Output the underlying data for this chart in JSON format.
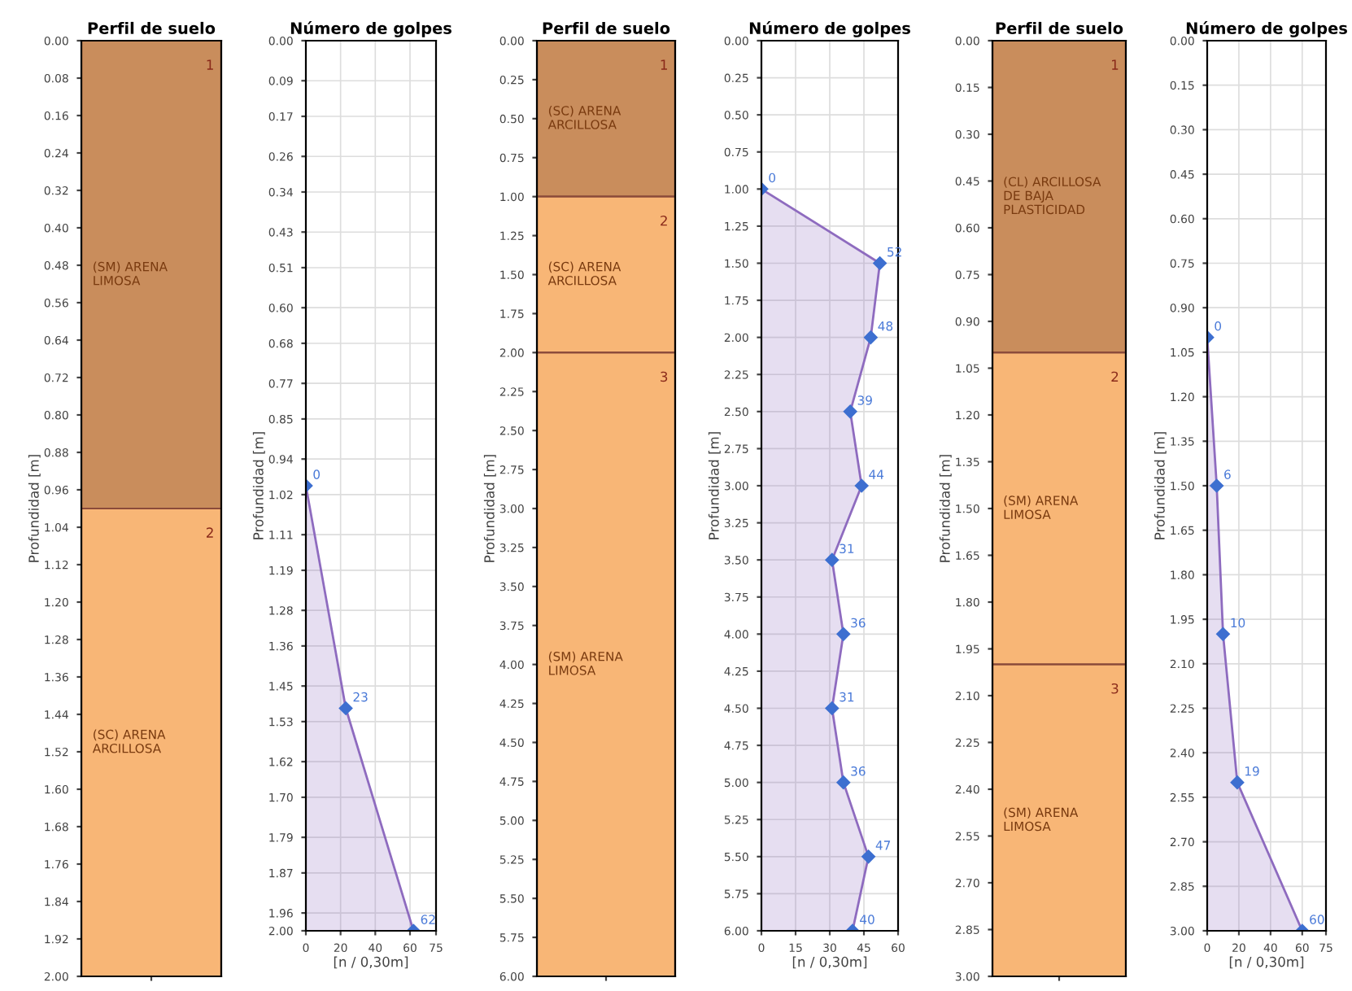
{
  "chart_data": [
    {
      "type": "bar",
      "title": "Perfil de suelo",
      "ylabel": "Profundidad [m]",
      "categories": [
        null
      ],
      "stacked": true,
      "series": [
        {
          "name": "(SM) ARENA LIMOSA",
          "color": "#c98d5c",
          "values": [
            1.0
          ]
        },
        {
          "name": "(SC) ARENA ARCILLOSA",
          "color": "#f8b676",
          "values": [
            1.0
          ]
        }
      ],
      "annotations": [
        "1",
        "2"
      ],
      "ylim": [
        2.0,
        0.0
      ],
      "yticks": [
        {
          "value": 0.0,
          "label": "0.00"
        },
        {
          "value": 0.08,
          "label": "0.08"
        },
        {
          "value": 0.16,
          "label": "0.16"
        },
        {
          "value": 0.24,
          "label": "0.24"
        },
        {
          "value": 0.32,
          "label": "0.32"
        },
        {
          "value": 0.4,
          "label": "0.40"
        },
        {
          "value": 0.48,
          "label": "0.48"
        },
        {
          "value": 0.56,
          "label": "0.56"
        },
        {
          "value": 0.64,
          "label": "0.64"
        },
        {
          "value": 0.72,
          "label": "0.72"
        },
        {
          "value": 0.8,
          "label": "0.80"
        },
        {
          "value": 0.88,
          "label": "0.88"
        },
        {
          "value": 0.96,
          "label": "0.96"
        },
        {
          "value": 1.04,
          "label": "1.04"
        },
        {
          "value": 1.12,
          "label": "1.12"
        },
        {
          "value": 1.2,
          "label": "1.20"
        },
        {
          "value": 1.28,
          "label": "1.28"
        },
        {
          "value": 1.36,
          "label": "1.36"
        },
        {
          "value": 1.44,
          "label": "1.44"
        },
        {
          "value": 1.52,
          "label": "1.52"
        },
        {
          "value": 1.6,
          "label": "1.60"
        },
        {
          "value": 1.68,
          "label": "1.68"
        },
        {
          "value": 1.76,
          "label": "1.76"
        },
        {
          "value": 1.84,
          "label": "1.84"
        },
        {
          "value": 1.92,
          "label": "1.92"
        },
        {
          "value": 2.0,
          "label": "2.00"
        }
      ]
    },
    {
      "type": "area",
      "orientation": "horizontal",
      "title": "Número de golpes",
      "ylabel": "Profundidad [m]",
      "xlabel": "[n / 0,30m]",
      "grid": true,
      "marker": "diamond",
      "data_labels": true,
      "series": [
        {
          "color": "#8e6bbf",
          "x": [
            1.0,
            1.5,
            2.0
          ],
          "values": [
            0,
            23,
            62
          ]
        }
      ],
      "xlim": [
        0,
        75
      ],
      "xticks": [
        0,
        20,
        40,
        60,
        75
      ],
      "ylim": [
        2.0,
        0.0
      ],
      "yticks": [
        {
          "value": 0.0,
          "label": "0.00"
        },
        {
          "value": 0.09,
          "label": "0.09"
        },
        {
          "value": 0.17,
          "label": "0.17"
        },
        {
          "value": 0.26,
          "label": "0.26"
        },
        {
          "value": 0.34,
          "label": "0.34"
        },
        {
          "value": 0.43,
          "label": "0.43"
        },
        {
          "value": 0.51,
          "label": "0.51"
        },
        {
          "value": 0.6,
          "label": "0.60"
        },
        {
          "value": 0.68,
          "label": "0.68"
        },
        {
          "value": 0.77,
          "label": "0.77"
        },
        {
          "value": 0.85,
          "label": "0.85"
        },
        {
          "value": 0.94,
          "label": "0.94"
        },
        {
          "value": 1.02,
          "label": "1.02"
        },
        {
          "value": 1.11,
          "label": "1.11"
        },
        {
          "value": 1.19,
          "label": "1.19"
        },
        {
          "value": 1.28,
          "label": "1.28"
        },
        {
          "value": 1.36,
          "label": "1.36"
        },
        {
          "value": 1.45,
          "label": "1.45"
        },
        {
          "value": 1.53,
          "label": "1.53"
        },
        {
          "value": 1.62,
          "label": "1.62"
        },
        {
          "value": 1.7,
          "label": "1.70"
        },
        {
          "value": 1.79,
          "label": "1.79"
        },
        {
          "value": 1.87,
          "label": "1.87"
        },
        {
          "value": 1.96,
          "label": "1.96"
        },
        {
          "value": 2.0,
          "label": "2.00"
        }
      ]
    },
    {
      "type": "bar",
      "title": "Perfil de suelo",
      "ylabel": "Profundidad [m]",
      "categories": [
        null
      ],
      "stacked": true,
      "series": [
        {
          "name": "(SC) ARENA ARCILLOSA",
          "color": "#c98d5c",
          "values": [
            1.0
          ]
        },
        {
          "name": "(SC) ARENA ARCILLOSA",
          "color": "#f8b676",
          "values": [
            1.0
          ]
        },
        {
          "name": "(SM) ARENA LIMOSA",
          "color": "#f8b676",
          "values": [
            4.0
          ]
        }
      ],
      "annotations": [
        "1",
        "2",
        "3"
      ],
      "ylim": [
        6.0,
        0.0
      ],
      "yticks": [
        {
          "value": 0.0,
          "label": "0.00"
        },
        {
          "value": 0.25,
          "label": "0.25"
        },
        {
          "value": 0.5,
          "label": "0.50"
        },
        {
          "value": 0.75,
          "label": "0.75"
        },
        {
          "value": 1.0,
          "label": "1.00"
        },
        {
          "value": 1.25,
          "label": "1.25"
        },
        {
          "value": 1.5,
          "label": "1.50"
        },
        {
          "value": 1.75,
          "label": "1.75"
        },
        {
          "value": 2.0,
          "label": "2.00"
        },
        {
          "value": 2.25,
          "label": "2.25"
        },
        {
          "value": 2.5,
          "label": "2.50"
        },
        {
          "value": 2.75,
          "label": "2.75"
        },
        {
          "value": 3.0,
          "label": "3.00"
        },
        {
          "value": 3.25,
          "label": "3.25"
        },
        {
          "value": 3.5,
          "label": "3.50"
        },
        {
          "value": 3.75,
          "label": "3.75"
        },
        {
          "value": 4.0,
          "label": "4.00"
        },
        {
          "value": 4.25,
          "label": "4.25"
        },
        {
          "value": 4.5,
          "label": "4.50"
        },
        {
          "value": 4.75,
          "label": "4.75"
        },
        {
          "value": 5.0,
          "label": "5.00"
        },
        {
          "value": 5.25,
          "label": "5.25"
        },
        {
          "value": 5.5,
          "label": "5.50"
        },
        {
          "value": 5.75,
          "label": "5.75"
        },
        {
          "value": 6.0,
          "label": "6.00"
        }
      ]
    },
    {
      "type": "area",
      "orientation": "horizontal",
      "title": "Número de golpes",
      "ylabel": "Profundidad [m]",
      "xlabel": "[n / 0,30m]",
      "grid": true,
      "marker": "diamond",
      "data_labels": true,
      "series": [
        {
          "color": "#8e6bbf",
          "x": [
            1.0,
            1.5,
            2.0,
            2.5,
            3.0,
            3.5,
            4.0,
            4.5,
            5.0,
            5.5,
            6.0
          ],
          "values": [
            0,
            52,
            48,
            39,
            44,
            31,
            36,
            31,
            36,
            47,
            40
          ]
        }
      ],
      "xlim": [
        0,
        60
      ],
      "xticks": [
        0,
        15,
        30,
        45,
        60
      ],
      "ylim": [
        6.0,
        0.0
      ],
      "yticks": [
        {
          "value": 0.0,
          "label": "0.00"
        },
        {
          "value": 0.25,
          "label": "0.25"
        },
        {
          "value": 0.5,
          "label": "0.50"
        },
        {
          "value": 0.75,
          "label": "0.75"
        },
        {
          "value": 1.0,
          "label": "1.00"
        },
        {
          "value": 1.25,
          "label": "1.25"
        },
        {
          "value": 1.5,
          "label": "1.50"
        },
        {
          "value": 1.75,
          "label": "1.75"
        },
        {
          "value": 2.0,
          "label": "2.00"
        },
        {
          "value": 2.25,
          "label": "2.25"
        },
        {
          "value": 2.5,
          "label": "2.50"
        },
        {
          "value": 2.75,
          "label": "2.75"
        },
        {
          "value": 3.0,
          "label": "3.00"
        },
        {
          "value": 3.25,
          "label": "3.25"
        },
        {
          "value": 3.5,
          "label": "3.50"
        },
        {
          "value": 3.75,
          "label": "3.75"
        },
        {
          "value": 4.0,
          "label": "4.00"
        },
        {
          "value": 4.25,
          "label": "4.25"
        },
        {
          "value": 4.5,
          "label": "4.50"
        },
        {
          "value": 4.75,
          "label": "4.75"
        },
        {
          "value": 5.0,
          "label": "5.00"
        },
        {
          "value": 5.25,
          "label": "5.25"
        },
        {
          "value": 5.5,
          "label": "5.50"
        },
        {
          "value": 5.75,
          "label": "5.75"
        },
        {
          "value": 6.0,
          "label": "6.00"
        }
      ]
    },
    {
      "type": "bar",
      "title": "Perfil de suelo",
      "ylabel": "Profundidad [m]",
      "categories": [
        null
      ],
      "stacked": true,
      "series": [
        {
          "name": "(CL) ARCILLOSA DE BAJA PLASTICIDAD",
          "color": "#c98d5c",
          "values": [
            1.0
          ]
        },
        {
          "name": "(SM) ARENA LIMOSA",
          "color": "#f8b676",
          "values": [
            1.0
          ]
        },
        {
          "name": "(SM) ARENA LIMOSA",
          "color": "#f8b676",
          "values": [
            1.0
          ]
        }
      ],
      "annotations": [
        "1",
        "2",
        "3"
      ],
      "ylim": [
        3.0,
        0.0
      ],
      "yticks": [
        {
          "value": 0.0,
          "label": "0.00"
        },
        {
          "value": 0.15,
          "label": "0.15"
        },
        {
          "value": 0.3,
          "label": "0.30"
        },
        {
          "value": 0.45,
          "label": "0.45"
        },
        {
          "value": 0.6,
          "label": "0.60"
        },
        {
          "value": 0.75,
          "label": "0.75"
        },
        {
          "value": 0.9,
          "label": "0.90"
        },
        {
          "value": 1.05,
          "label": "1.05"
        },
        {
          "value": 1.2,
          "label": "1.20"
        },
        {
          "value": 1.35,
          "label": "1.35"
        },
        {
          "value": 1.5,
          "label": "1.50"
        },
        {
          "value": 1.65,
          "label": "1.65"
        },
        {
          "value": 1.8,
          "label": "1.80"
        },
        {
          "value": 1.95,
          "label": "1.95"
        },
        {
          "value": 2.1,
          "label": "2.10"
        },
        {
          "value": 2.25,
          "label": "2.25"
        },
        {
          "value": 2.4,
          "label": "2.40"
        },
        {
          "value": 2.55,
          "label": "2.55"
        },
        {
          "value": 2.7,
          "label": "2.70"
        },
        {
          "value": 2.85,
          "label": "2.85"
        },
        {
          "value": 3.0,
          "label": "3.00"
        }
      ]
    },
    {
      "type": "area",
      "orientation": "horizontal",
      "title": "Número de golpes",
      "ylabel": "Profundidad [m]",
      "xlabel": "[n / 0,30m]",
      "grid": true,
      "marker": "diamond",
      "data_labels": true,
      "series": [
        {
          "color": "#8e6bbf",
          "x": [
            1.0,
            1.5,
            2.0,
            2.5,
            3.0
          ],
          "values": [
            0,
            6,
            10,
            19,
            60
          ]
        }
      ],
      "xlim": [
        0,
        75
      ],
      "xticks": [
        0,
        20,
        40,
        60,
        75
      ],
      "ylim": [
        3.0,
        0.0
      ],
      "yticks": [
        {
          "value": 0.0,
          "label": "0.00"
        },
        {
          "value": 0.15,
          "label": "0.15"
        },
        {
          "value": 0.3,
          "label": "0.30"
        },
        {
          "value": 0.45,
          "label": "0.45"
        },
        {
          "value": 0.6,
          "label": "0.60"
        },
        {
          "value": 0.75,
          "label": "0.75"
        },
        {
          "value": 0.9,
          "label": "0.90"
        },
        {
          "value": 1.05,
          "label": "1.05"
        },
        {
          "value": 1.2,
          "label": "1.20"
        },
        {
          "value": 1.35,
          "label": "1.35"
        },
        {
          "value": 1.5,
          "label": "1.50"
        },
        {
          "value": 1.65,
          "label": "1.65"
        },
        {
          "value": 1.8,
          "label": "1.80"
        },
        {
          "value": 1.95,
          "label": "1.95"
        },
        {
          "value": 2.1,
          "label": "2.10"
        },
        {
          "value": 2.25,
          "label": "2.25"
        },
        {
          "value": 2.4,
          "label": "2.40"
        },
        {
          "value": 2.55,
          "label": "2.55"
        },
        {
          "value": 2.7,
          "label": "2.70"
        },
        {
          "value": 2.85,
          "label": "2.85"
        },
        {
          "value": 3.0,
          "label": "3.00"
        }
      ]
    }
  ]
}
